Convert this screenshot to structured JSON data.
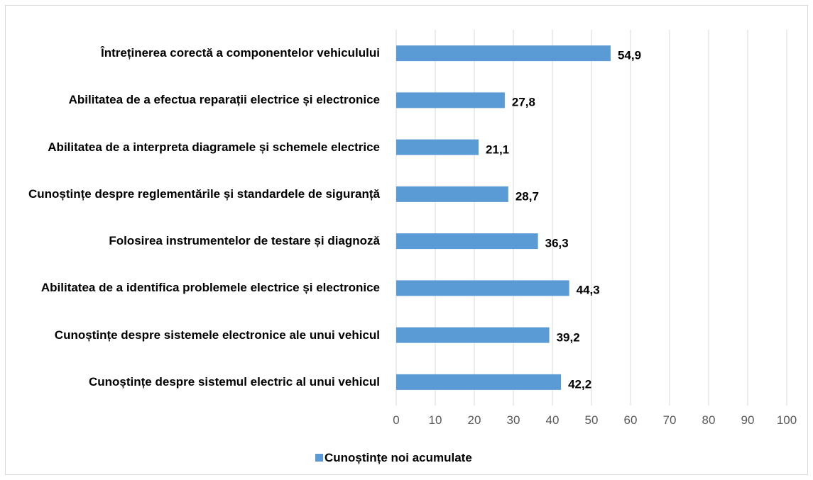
{
  "chart_data": {
    "type": "bar",
    "orientation": "horizontal",
    "categories": [
      "Întreținerea corectă a componentelor vehiculului",
      "Abilitatea de a efectua reparații electrice și electronice",
      "Abilitatea de a interpreta diagramele și schemele electrice",
      "Cunoștințe despre reglementările și standardele de siguranță",
      "Folosirea instrumentelor de testare și diagnoză",
      "Abilitatea de a identifica problemele electrice și electronice",
      "Cunoștințe despre sistemele electronice ale unui vehicul",
      "Cunoștințe despre sistemul electric al unui vehicul"
    ],
    "series": [
      {
        "name": "Cunoștințe noi acumulate",
        "color": "#5b9bd5",
        "values": [
          54.9,
          27.8,
          21.1,
          28.7,
          36.3,
          44.3,
          39.2,
          42.2
        ],
        "value_labels": [
          "54,9",
          "27,8",
          "21,1",
          "28,7",
          "36,3",
          "44,3",
          "39,2",
          "42,2"
        ]
      }
    ],
    "xlim": [
      0,
      100
    ],
    "xticks": [
      0,
      10,
      20,
      30,
      40,
      50,
      60,
      70,
      80,
      90,
      100
    ],
    "grid": true,
    "legend": "bottom"
  }
}
